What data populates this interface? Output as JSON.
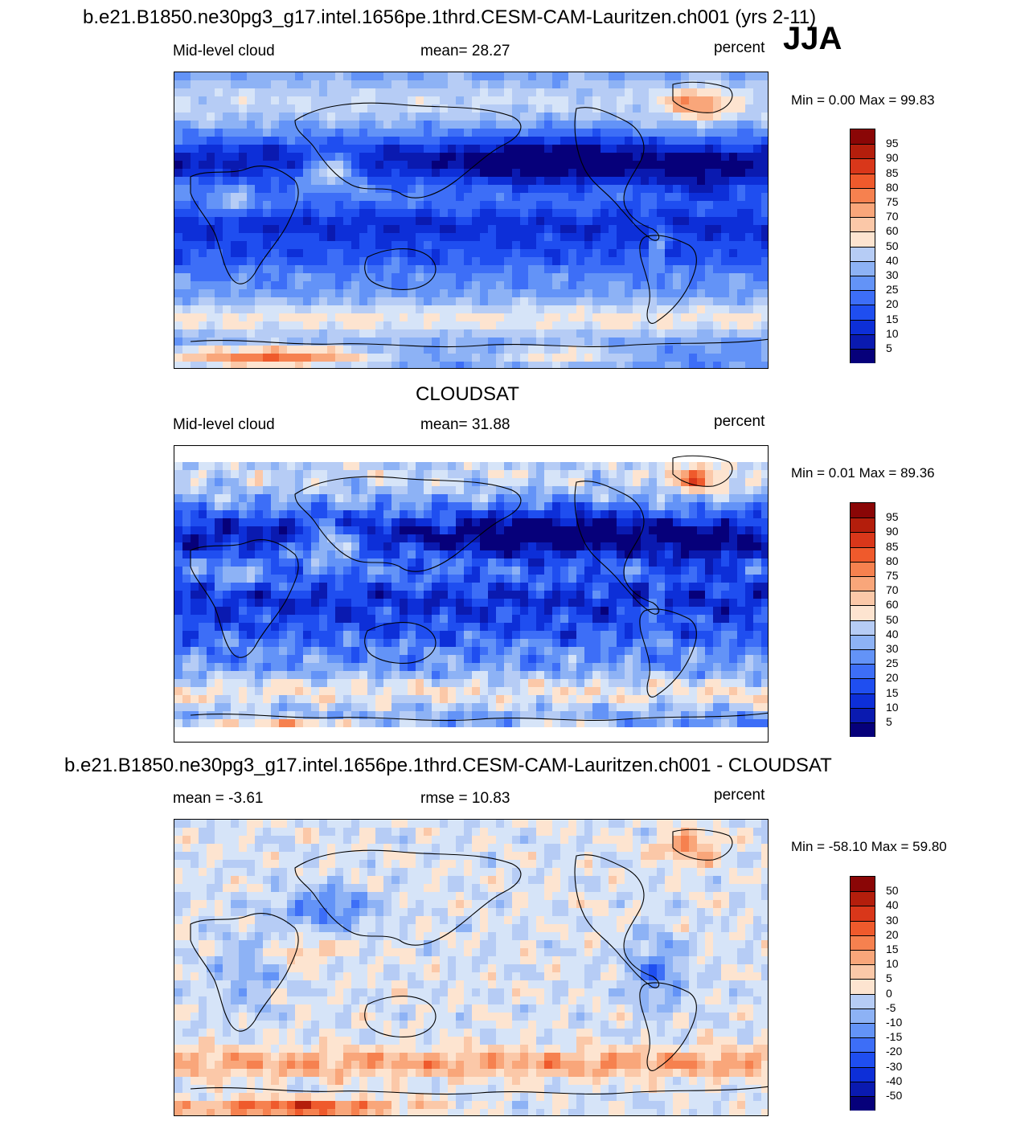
{
  "figure": {
    "title": "b.e21.B1850.ne30pg3_g17.intel.1656pe.1thrd.CESM-CAM-Lauritzen.ch001 (yrs 2-11)",
    "season": "JJA",
    "obs_title": "CLOUDSAT",
    "diff_title": "b.e21.B1850.ne30pg3_g17.intel.1656pe.1thrd.CESM-CAM-Lauritzen.ch001 - CLOUDSAT"
  },
  "colors": {
    "seq": [
      "#06007a",
      "#0a1ab0",
      "#0d2fd8",
      "#1f4ef0",
      "#3d6ef7",
      "#6393f7",
      "#8db2f5",
      "#b6ccf5",
      "#d6e4f8",
      "#fde4d0",
      "#fbc8a8",
      "#f9a67a",
      "#f6814f",
      "#ef5a2c",
      "#d9371a",
      "#b41e0c",
      "#8a0606"
    ],
    "diff": [
      "#06007a",
      "#0a1ab0",
      "#0d2fd8",
      "#1f4ef0",
      "#3d6ef7",
      "#6393f7",
      "#8db2f5",
      "#b6ccf5",
      "#d6e4f8",
      "#fde4d0",
      "#fbc8a8",
      "#f9a67a",
      "#f6814f",
      "#ef5a2c",
      "#d9371a",
      "#b41e0c",
      "#8a0606"
    ]
  },
  "chart_data": [
    {
      "type": "heatmap",
      "name": "model",
      "variable": "Mid-level cloud",
      "stat_label": "mean=  28.27",
      "units": "percent",
      "min_max": "Min =    0.00 Max =  99.83",
      "colorbar_levels": [
        "95",
        "90",
        "85",
        "80",
        "75",
        "70",
        "60",
        "50",
        "40",
        "30",
        "25",
        "20",
        "15",
        "10",
        "5"
      ]
    },
    {
      "type": "heatmap",
      "name": "observation",
      "variable": "Mid-level cloud",
      "stat_label": "mean=  31.88",
      "units": "percent",
      "min_max": "Min =   0.01 Max =  89.36",
      "colorbar_levels": [
        "95",
        "90",
        "85",
        "80",
        "75",
        "70",
        "60",
        "50",
        "40",
        "30",
        "25",
        "20",
        "15",
        "10",
        "5"
      ]
    },
    {
      "type": "heatmap",
      "name": "difference",
      "mean_label": "mean =  -3.61",
      "rmse_label": "rmse =  10.83",
      "units": "percent",
      "min_max": "Min = -58.10 Max =  59.80",
      "colorbar_levels": [
        "50",
        "40",
        "30",
        "20",
        "15",
        "10",
        "5",
        "0",
        "-5",
        "-10",
        "-15",
        "-20",
        "-30",
        "-40",
        "-50"
      ]
    }
  ]
}
